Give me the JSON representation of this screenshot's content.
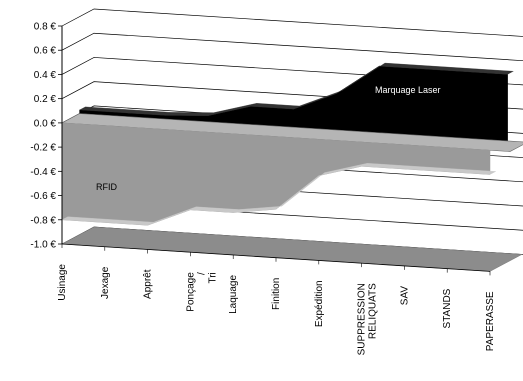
{
  "chart_data": {
    "type": "area",
    "view": "3d",
    "categories": [
      "Usinage",
      "Jexage",
      "Apprêt",
      "Ponçage / Tri",
      "Laquage",
      "Finition",
      "Expédition",
      "SUPPRESSION RELIQUATS",
      "SAV",
      "STANDS",
      "PAPERASSE"
    ],
    "y_ticks": [
      "0.8 €",
      "0.6 €",
      "0.4 €",
      "0.2 €",
      "0.0 €",
      "-0.2 €",
      "-0.4 €",
      "-0.6 €",
      "-0.8 €",
      "-1.0 €"
    ],
    "ylim": [
      -1.0,
      0.8
    ],
    "grid": true,
    "series": [
      {
        "name": "Marquage Laser",
        "values": [
          0.03,
          0.03,
          0.03,
          0.05,
          0.15,
          0.15,
          0.3,
          0.55,
          0.55,
          0.55,
          0.55
        ]
      },
      {
        "name": "RFID",
        "values": [
          -0.8,
          -0.8,
          -0.8,
          -0.65,
          -0.65,
          -0.6,
          -0.3,
          -0.2,
          -0.2,
          -0.2,
          -0.2
        ]
      }
    ],
    "colors": {
      "Marquage Laser": "#000000",
      "RFID": "#9a9a9a"
    }
  }
}
